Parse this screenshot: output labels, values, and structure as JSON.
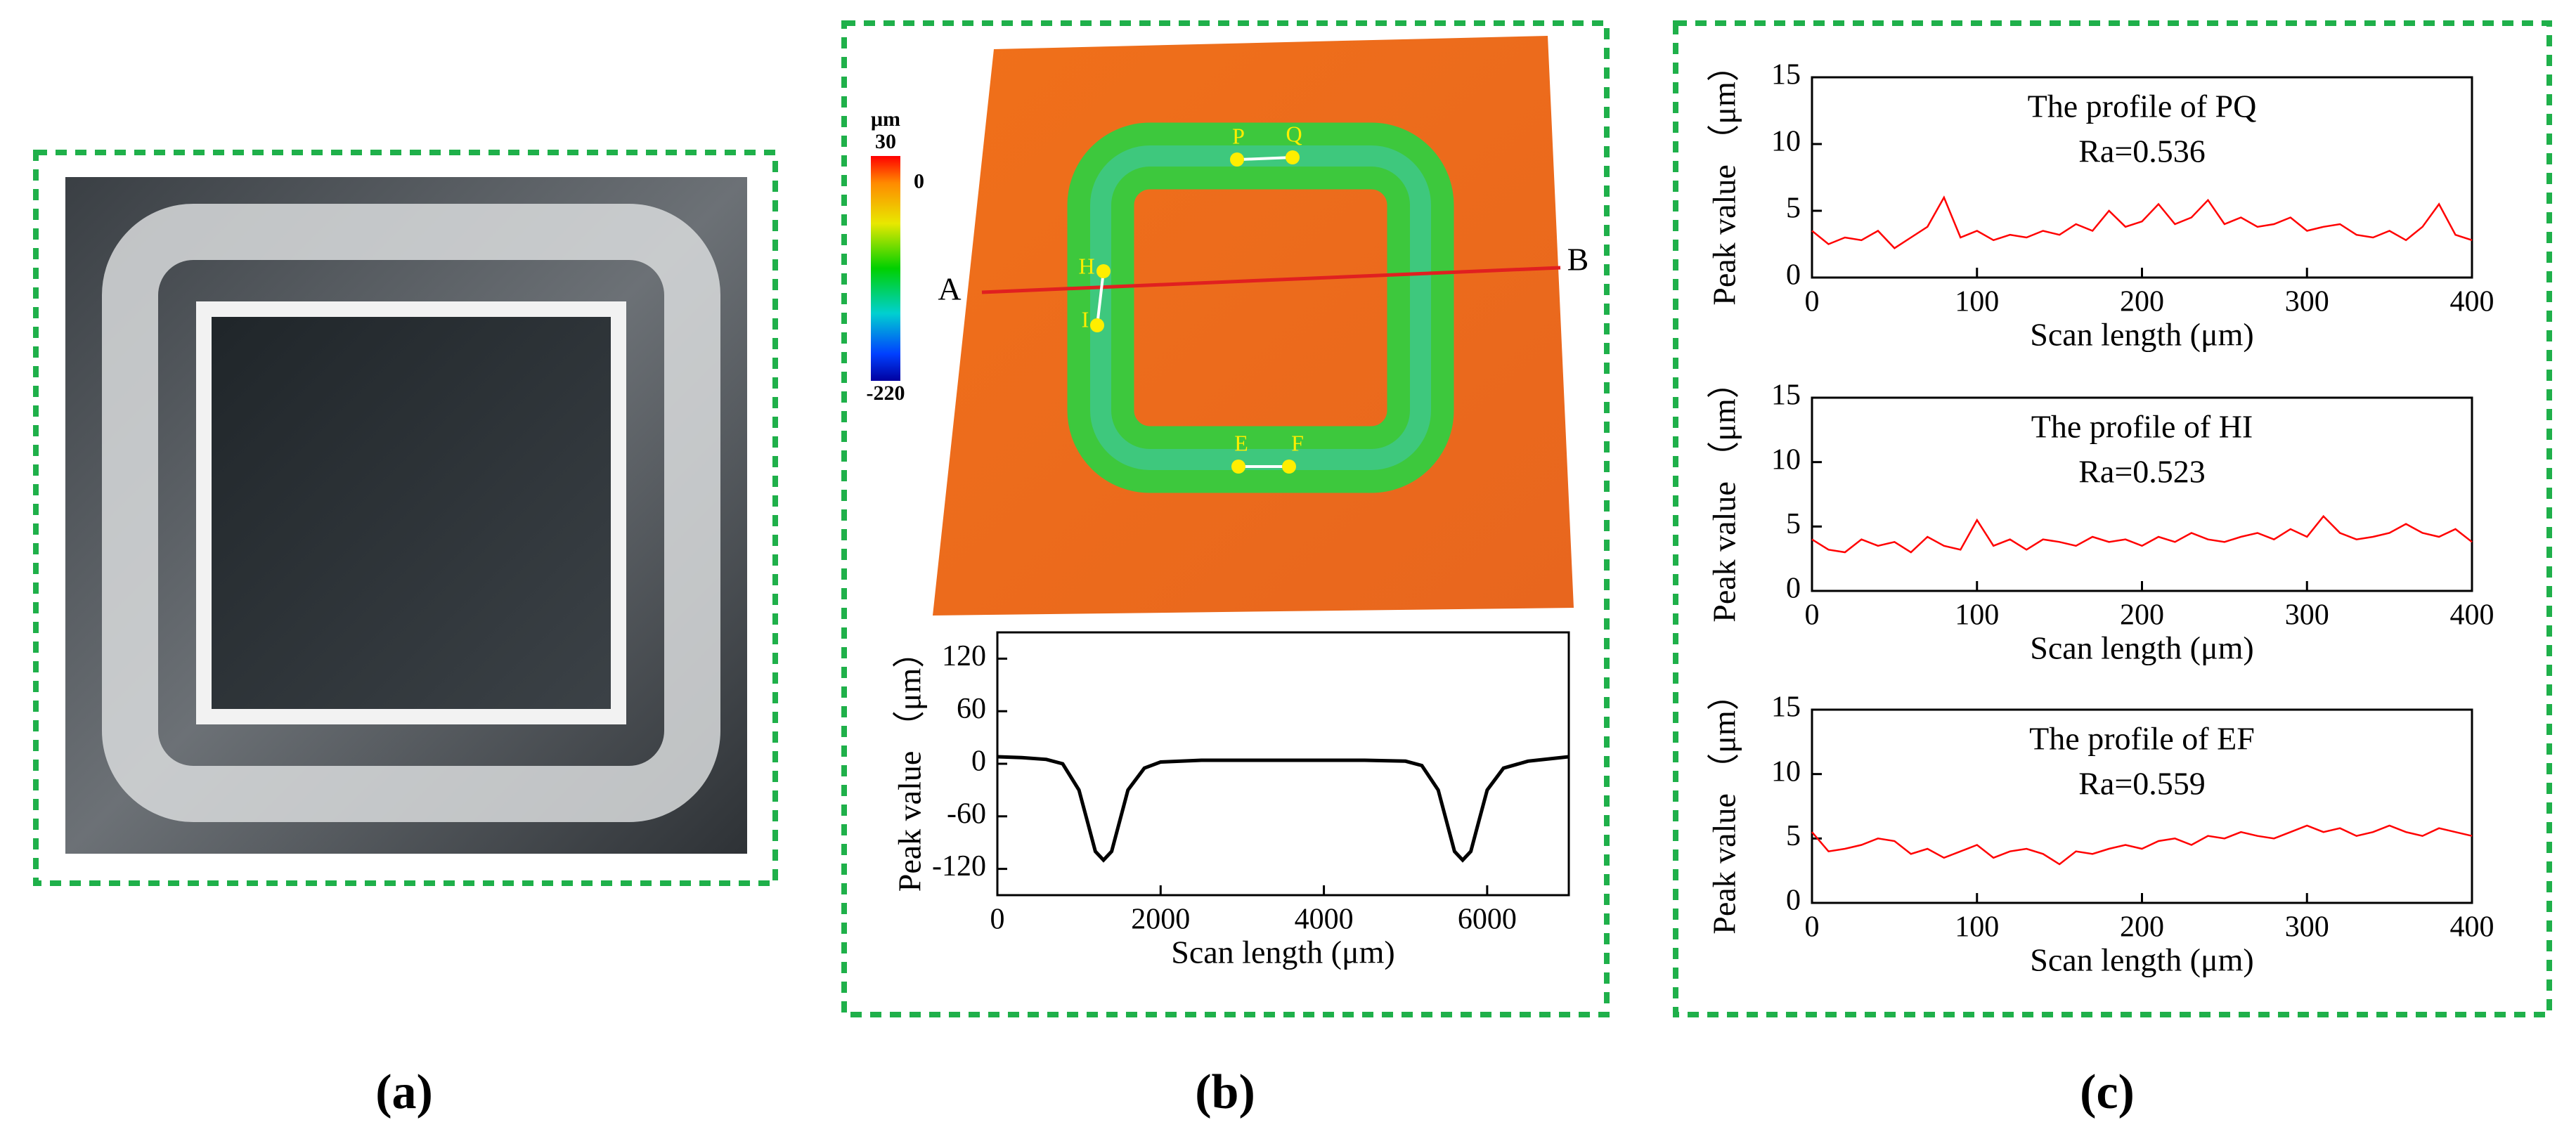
{
  "figure": {
    "panel_labels": [
      "(a)",
      "(b)",
      "(c)"
    ],
    "colorbar": {
      "unit": "μm",
      "max": 30,
      "zero": 0,
      "min": -220
    },
    "points": [
      "A",
      "B",
      "P",
      "Q",
      "H",
      "I",
      "E",
      "F"
    ]
  },
  "chart_data": [
    {
      "type": "line",
      "xlabel": "Scan length (μm)",
      "ylabel": "Peak value （μm）",
      "x": [
        0,
        300,
        600,
        800,
        1000,
        1100,
        1200,
        1300,
        1400,
        1500,
        1600,
        1800,
        2000,
        2500,
        3000,
        3500,
        4000,
        4500,
        5000,
        5200,
        5400,
        5500,
        5600,
        5700,
        5800,
        5900,
        6000,
        6200,
        6500,
        7000
      ],
      "values": [
        8,
        7,
        5,
        0,
        -30,
        -65,
        -100,
        -110,
        -100,
        -65,
        -30,
        -5,
        2,
        4,
        4,
        4,
        4,
        4,
        3,
        -2,
        -30,
        -65,
        -100,
        -110,
        -100,
        -65,
        -30,
        -5,
        3,
        8
      ],
      "color": "#000000",
      "xlim": [
        0,
        7000
      ],
      "xticks": [
        0,
        2000,
        4000,
        6000
      ],
      "ylim": [
        -150,
        150
      ],
      "yticks": [
        -120,
        -60,
        0,
        60,
        120
      ]
    },
    {
      "type": "line",
      "title": "The profile of PQ",
      "annotation": "Ra=0.536",
      "xlabel": "Scan length (μm)",
      "ylabel": "Peak value （μm）",
      "x": [
        0,
        10,
        20,
        30,
        40,
        50,
        60,
        70,
        80,
        90,
        100,
        110,
        120,
        130,
        140,
        150,
        160,
        170,
        180,
        190,
        200,
        210,
        220,
        230,
        240,
        250,
        260,
        270,
        280,
        290,
        300,
        310,
        320,
        330,
        340,
        350,
        360,
        370,
        380,
        390,
        400
      ],
      "values": [
        3.5,
        2.5,
        3,
        2.8,
        3.5,
        2.2,
        3,
        3.8,
        6,
        3,
        3.5,
        2.8,
        3.2,
        3,
        3.5,
        3.2,
        4,
        3.5,
        5,
        3.8,
        4.2,
        5.5,
        4,
        4.5,
        5.8,
        4,
        4.5,
        3.8,
        4,
        4.5,
        3.5,
        3.8,
        4,
        3.2,
        3,
        3.5,
        2.8,
        3.8,
        5.5,
        3.2,
        2.8
      ],
      "color": "#ff0000",
      "xlim": [
        0,
        400
      ],
      "xticks": [
        0,
        100,
        200,
        300,
        400
      ],
      "ylim": [
        0,
        15
      ],
      "yticks": [
        0,
        5,
        10,
        15
      ]
    },
    {
      "type": "line",
      "title": "The profile of HI",
      "annotation": "Ra=0.523",
      "xlabel": "Scan length (μm)",
      "ylabel": "Peak value （μm）",
      "x": [
        0,
        10,
        20,
        30,
        40,
        50,
        60,
        70,
        80,
        90,
        100,
        110,
        120,
        130,
        140,
        150,
        160,
        170,
        180,
        190,
        200,
        210,
        220,
        230,
        240,
        250,
        260,
        270,
        280,
        290,
        300,
        310,
        320,
        330,
        340,
        350,
        360,
        370,
        380,
        390,
        400
      ],
      "values": [
        4,
        3.2,
        3,
        4,
        3.5,
        3.8,
        3,
        4.2,
        3.5,
        3.2,
        5.5,
        3.5,
        4,
        3.2,
        4,
        3.8,
        3.5,
        4.2,
        3.8,
        4,
        3.5,
        4.2,
        3.8,
        4.5,
        4,
        3.8,
        4.2,
        4.5,
        4,
        4.8,
        4.2,
        5.8,
        4.5,
        4,
        4.2,
        4.5,
        5.2,
        4.5,
        4.2,
        4.8,
        3.8
      ],
      "color": "#ff0000",
      "xlim": [
        0,
        400
      ],
      "xticks": [
        0,
        100,
        200,
        300,
        400
      ],
      "ylim": [
        0,
        15
      ],
      "yticks": [
        0,
        5,
        10,
        15
      ]
    },
    {
      "type": "line",
      "title": "The profile of EF",
      "annotation": "Ra=0.559",
      "xlabel": "Scan length (μm)",
      "ylabel": "Peak value （μm）",
      "x": [
        0,
        10,
        20,
        30,
        40,
        50,
        60,
        70,
        80,
        90,
        100,
        110,
        120,
        130,
        140,
        150,
        160,
        170,
        180,
        190,
        200,
        210,
        220,
        230,
        240,
        250,
        260,
        270,
        280,
        290,
        300,
        310,
        320,
        330,
        340,
        350,
        360,
        370,
        380,
        390,
        400
      ],
      "values": [
        5.5,
        4,
        4.2,
        4.5,
        5,
        4.8,
        3.8,
        4.2,
        3.5,
        4,
        4.5,
        3.5,
        4,
        4.2,
        3.8,
        3,
        4,
        3.8,
        4.2,
        4.5,
        4.2,
        4.8,
        5,
        4.5,
        5.2,
        5,
        5.5,
        5.2,
        5,
        5.5,
        6,
        5.5,
        5.8,
        5.2,
        5.5,
        6,
        5.5,
        5.2,
        5.8,
        5.5,
        5.2
      ],
      "color": "#ff0000",
      "xlim": [
        0,
        400
      ],
      "xticks": [
        0,
        100,
        200,
        300,
        400
      ],
      "ylim": [
        0,
        15
      ],
      "yticks": [
        0,
        5,
        10,
        15
      ]
    }
  ]
}
